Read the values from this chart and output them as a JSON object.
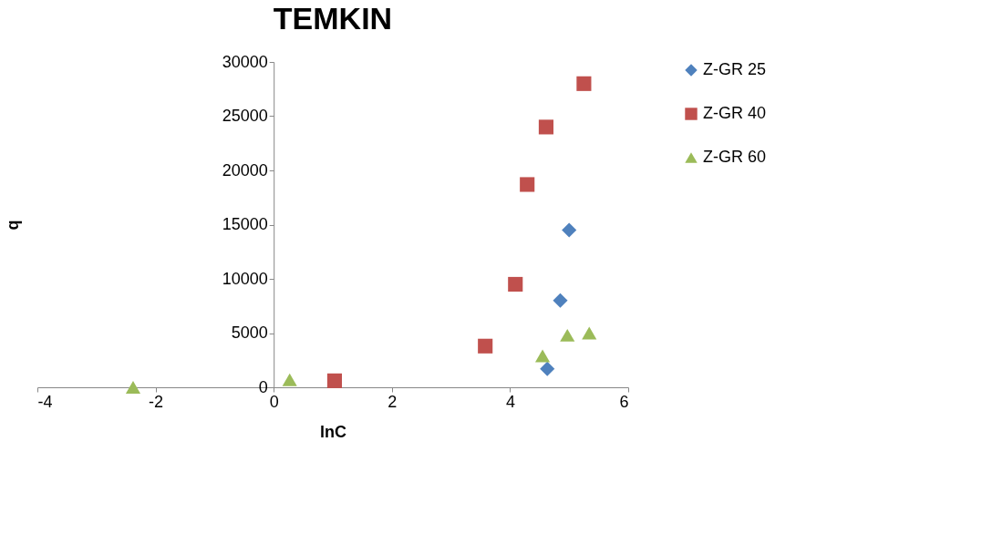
{
  "chart_data": {
    "type": "scatter",
    "title": "TEMKIN",
    "xlabel": "lnC",
    "ylabel": "q",
    "xlim": [
      -4,
      6
    ],
    "xticks": [
      -4,
      -2,
      0,
      2,
      4,
      6
    ],
    "ylim": [
      0,
      30000
    ],
    "yticks": [
      0,
      5000,
      10000,
      15000,
      20000,
      25000,
      30000
    ],
    "grid": false,
    "legend": "right",
    "series": [
      {
        "name": "Z-GR 25",
        "color": "#4f81bd",
        "marker": "diamond",
        "x": [
          4.63,
          4.85,
          5.0
        ],
        "values": [
          1700,
          8000,
          14500
        ]
      },
      {
        "name": "Z-GR 40",
        "color": "#c0504d",
        "marker": "square",
        "x": [
          1.03,
          3.58,
          4.09,
          4.29,
          4.61,
          5.25
        ],
        "values": [
          600,
          3800,
          9500,
          18700,
          24000,
          28000
        ]
      },
      {
        "name": "Z-GR 60",
        "color": "#9bbb59",
        "marker": "triangle",
        "x": [
          -2.38,
          0.27,
          4.55,
          4.97,
          5.34
        ],
        "values": [
          0,
          700,
          2900,
          4800,
          5000
        ]
      }
    ]
  }
}
